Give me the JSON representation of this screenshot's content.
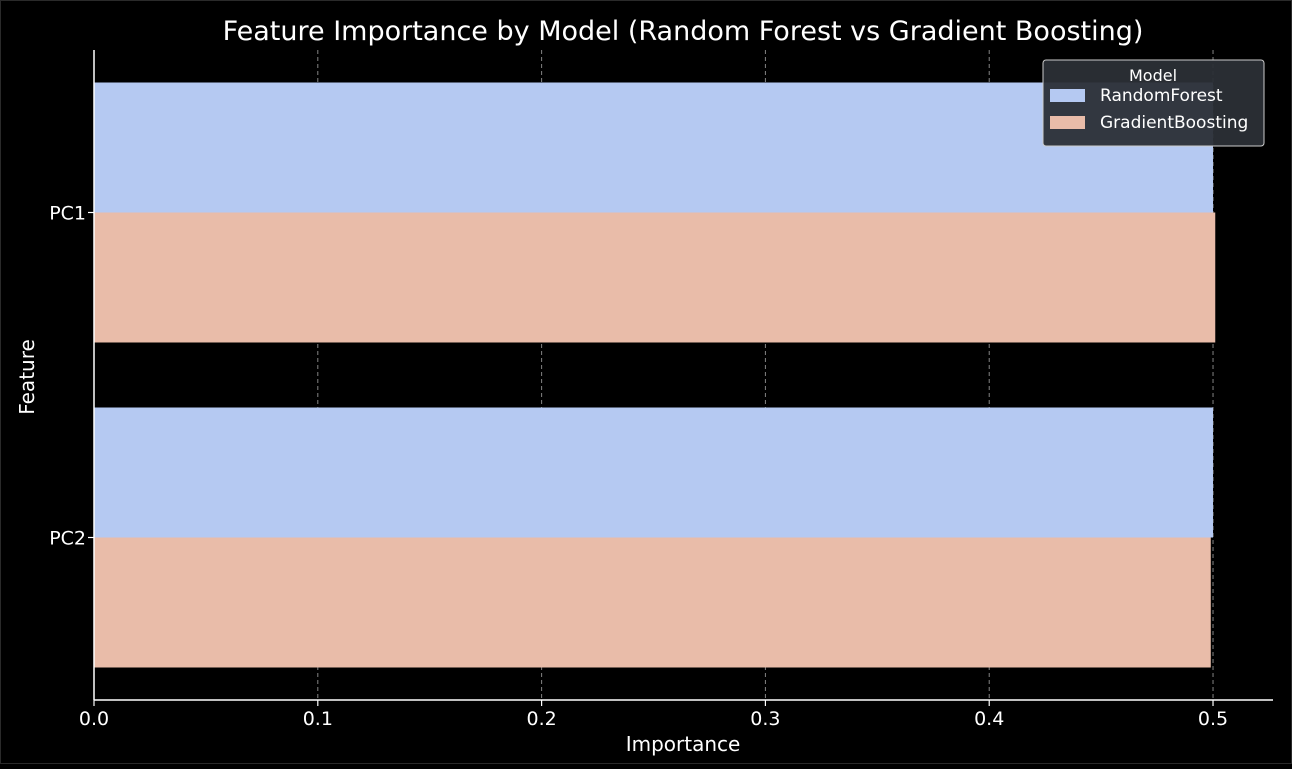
{
  "chart_data": {
    "type": "bar",
    "orientation": "horizontal",
    "title": "Feature Importance by Model (Random Forest vs Gradient Boosting)",
    "xlabel": "Importance",
    "ylabel": "Feature",
    "categories": [
      "PC1",
      "PC2"
    ],
    "series": [
      {
        "name": "RandomForest",
        "values": [
          0.5,
          0.5
        ],
        "color": "#b5c9f2"
      },
      {
        "name": "GradientBoosting",
        "values": [
          0.501,
          0.499
        ],
        "color": "#e9bca9"
      }
    ],
    "xlim": [
      0.0,
      0.5268
    ],
    "xticks": [
      0.0,
      0.1,
      0.2,
      0.3,
      0.4,
      0.5
    ],
    "xtick_labels": [
      "0.0",
      "0.1",
      "0.2",
      "0.3",
      "0.4",
      "0.5"
    ],
    "grid": "x dashed",
    "legend": {
      "title": "Model",
      "position": "top-right"
    }
  },
  "colors": {
    "background": "#000000",
    "text": "#ffffff",
    "grid": "#9a9a9a",
    "legend_bg": "#2b2f36",
    "legend_border": "#cccccc"
  }
}
